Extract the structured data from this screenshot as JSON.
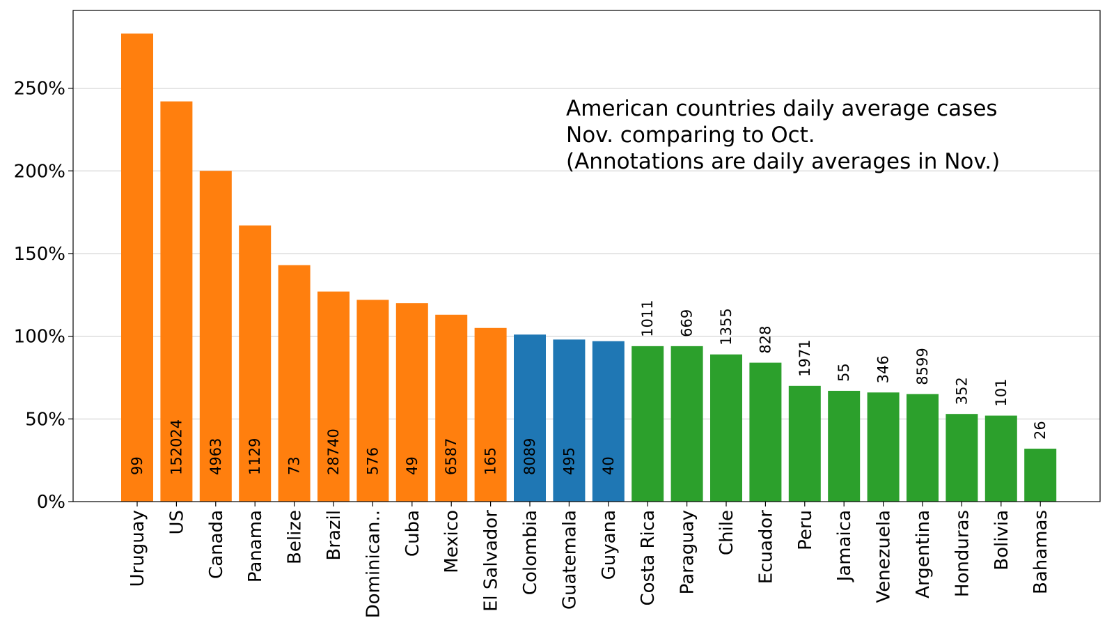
{
  "chart_data": {
    "type": "bar",
    "annotation_lines": [
      "American countries daily average cases",
      "Nov. comparing to Oct.",
      "(Annotations are daily averages in Nov.)"
    ],
    "categories": [
      "Uruguay",
      "US",
      "Canada",
      "Panama",
      "Belize",
      "Brazil",
      "Dominican..",
      "Cuba",
      "Mexico",
      "El Salvador",
      "Colombia",
      "Guatemala",
      "Guyana",
      "Costa Rica",
      "Paraguay",
      "Chile",
      "Ecuador",
      "Peru",
      "Jamaica",
      "Venezuela",
      "Argentina",
      "Honduras",
      "Bolivia",
      "Bahamas"
    ],
    "values": [
      283,
      242,
      200,
      167,
      143,
      127,
      122,
      120,
      113,
      105,
      101,
      98,
      97,
      94,
      94,
      89,
      84,
      70,
      67,
      66,
      65,
      53,
      52,
      32
    ],
    "annotations": [
      "99",
      "152024",
      "4963",
      "1129",
      "73",
      "28740",
      "576",
      "49",
      "6587",
      "165",
      "8089",
      "495",
      "40",
      "1011",
      "669",
      "1355",
      "828",
      "1971",
      "55",
      "346",
      "8599",
      "352",
      "101",
      "26"
    ],
    "groups": [
      "orange",
      "orange",
      "orange",
      "orange",
      "orange",
      "orange",
      "orange",
      "orange",
      "orange",
      "orange",
      "blue",
      "blue",
      "blue",
      "green",
      "green",
      "green",
      "green",
      "green",
      "green",
      "green",
      "green",
      "green",
      "green",
      "green"
    ],
    "colors": {
      "orange": "#ff7f0e",
      "blue": "#1f77b4",
      "green": "#2ca02c"
    },
    "annotation_placement": {
      "orange": "inside-bottom",
      "blue": "inside-bottom",
      "green": "above-bar"
    },
    "ylim": [
      0,
      297
    ],
    "yticks": [
      0,
      50,
      100,
      150,
      200,
      250
    ],
    "ytick_labels": [
      "0%",
      "50%",
      "100%",
      "150%",
      "200%",
      "250%"
    ],
    "grid": "horizontal",
    "xlabel": "",
    "ylabel": ""
  }
}
